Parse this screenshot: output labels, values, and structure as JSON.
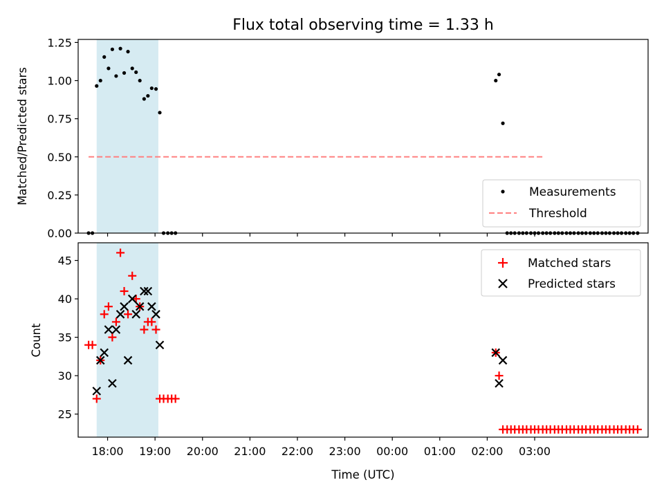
{
  "chart_data": [
    {
      "type": "scatter",
      "title": "Flux total observing time = 1.33 h",
      "xlabel": "",
      "ylabel": "Matched/Predicted stars",
      "ylim": [
        0,
        1.27
      ],
      "yticks": [
        "0.00",
        "0.25",
        "0.50",
        "0.75",
        "1.00",
        "1.25"
      ],
      "xticks_hours": [
        18,
        19,
        20,
        21,
        22,
        23,
        24,
        25,
        26,
        27
      ],
      "shaded_span_hours": [
        17.77,
        19.07
      ],
      "shaded_color": "#add8e6",
      "legend_position": "lower right",
      "legend": [
        "Measurements",
        "Threshold"
      ],
      "threshold": {
        "name": "Threshold",
        "value": 0.5,
        "x_hours": [
          17.6,
          27.2
        ],
        "color": "#ff8080",
        "style": "dashed"
      },
      "series": [
        {
          "name": "Measurements",
          "color": "#000000",
          "marker": "dot",
          "points": [
            [
              17.6,
              0
            ],
            [
              17.68,
              0
            ],
            [
              17.77,
              0.965
            ],
            [
              17.85,
              1.0
            ],
            [
              17.93,
              1.155
            ],
            [
              18.02,
              1.08
            ],
            [
              18.1,
              1.205
            ],
            [
              18.18,
              1.03
            ],
            [
              18.27,
              1.21
            ],
            [
              18.35,
              1.05
            ],
            [
              18.43,
              1.19
            ],
            [
              18.52,
              1.08
            ],
            [
              18.6,
              1.055
            ],
            [
              18.68,
              1.0
            ],
            [
              18.77,
              0.88
            ],
            [
              18.85,
              0.9
            ],
            [
              18.93,
              0.95
            ],
            [
              19.02,
              0.945
            ],
            [
              19.1,
              0.79
            ],
            [
              19.18,
              0
            ],
            [
              19.27,
              0
            ],
            [
              19.35,
              0
            ],
            [
              19.43,
              0
            ],
            [
              26.18,
              1.0
            ],
            [
              26.25,
              1.04
            ],
            [
              26.33,
              0.72
            ],
            [
              26.42,
              0
            ],
            [
              26.5,
              0
            ],
            [
              26.58,
              0
            ],
            [
              26.67,
              0
            ],
            [
              26.75,
              0
            ],
            [
              26.83,
              0
            ],
            [
              26.92,
              0
            ],
            [
              27.0,
              0
            ],
            [
              27.08,
              0
            ],
            [
              27.17,
              0
            ],
            [
              27.25,
              0
            ],
            [
              27.33,
              0
            ],
            [
              27.42,
              0
            ],
            [
              27.5,
              0
            ],
            [
              27.58,
              0
            ],
            [
              27.67,
              0
            ],
            [
              27.75,
              0
            ],
            [
              27.83,
              0
            ],
            [
              27.92,
              0
            ],
            [
              28.0,
              0
            ],
            [
              28.08,
              0
            ],
            [
              28.17,
              0
            ],
            [
              28.25,
              0
            ],
            [
              28.33,
              0
            ],
            [
              28.42,
              0
            ],
            [
              28.5,
              0
            ],
            [
              28.58,
              0
            ],
            [
              28.67,
              0
            ],
            [
              28.75,
              0
            ],
            [
              28.83,
              0
            ],
            [
              28.92,
              0
            ],
            [
              29.0,
              0
            ],
            [
              29.08,
              0
            ],
            [
              29.17,
              0
            ]
          ]
        }
      ]
    },
    {
      "type": "scatter",
      "title": "",
      "xlabel": "Time (UTC)",
      "ylabel": "Count",
      "ylim": [
        22,
        47.3
      ],
      "yticks": [
        "25",
        "30",
        "35",
        "40",
        "45"
      ],
      "xtick_labels": [
        "18:00",
        "19:00",
        "20:00",
        "21:00",
        "22:00",
        "23:00",
        "00:00",
        "01:00",
        "02:00",
        "03:00"
      ],
      "xticks_hours": [
        18,
        19,
        20,
        21,
        22,
        23,
        24,
        25,
        26,
        27
      ],
      "shaded_span_hours": [
        17.77,
        19.07
      ],
      "legend_position": "upper right",
      "legend": [
        "Matched stars",
        "Predicted stars"
      ],
      "series": [
        {
          "name": "Matched stars",
          "color": "#ff0000",
          "marker": "plus",
          "points": [
            [
              17.6,
              34
            ],
            [
              17.68,
              34
            ],
            [
              17.77,
              27
            ],
            [
              17.85,
              32
            ],
            [
              17.93,
              38
            ],
            [
              18.02,
              39
            ],
            [
              18.1,
              35
            ],
            [
              18.18,
              37
            ],
            [
              18.27,
              46
            ],
            [
              18.35,
              41
            ],
            [
              18.43,
              38
            ],
            [
              18.52,
              43
            ],
            [
              18.6,
              40
            ],
            [
              18.68,
              39
            ],
            [
              18.77,
              36
            ],
            [
              18.85,
              37
            ],
            [
              18.93,
              37
            ],
            [
              19.02,
              36
            ],
            [
              19.1,
              27
            ],
            [
              19.18,
              27
            ],
            [
              19.27,
              27
            ],
            [
              19.35,
              27
            ],
            [
              19.43,
              27
            ],
            [
              26.18,
              33
            ],
            [
              26.25,
              30
            ],
            [
              26.33,
              23
            ],
            [
              26.42,
              23
            ],
            [
              26.5,
              23
            ],
            [
              26.58,
              23
            ],
            [
              26.67,
              23
            ],
            [
              26.75,
              23
            ],
            [
              26.83,
              23
            ],
            [
              26.92,
              23
            ],
            [
              27.0,
              23
            ],
            [
              27.08,
              23
            ],
            [
              27.17,
              23
            ],
            [
              27.25,
              23
            ],
            [
              27.33,
              23
            ],
            [
              27.42,
              23
            ],
            [
              27.5,
              23
            ],
            [
              27.58,
              23
            ],
            [
              27.67,
              23
            ],
            [
              27.75,
              23
            ],
            [
              27.83,
              23
            ],
            [
              27.92,
              23
            ],
            [
              28.0,
              23
            ],
            [
              28.08,
              23
            ],
            [
              28.17,
              23
            ],
            [
              28.25,
              23
            ],
            [
              28.33,
              23
            ],
            [
              28.42,
              23
            ],
            [
              28.5,
              23
            ],
            [
              28.58,
              23
            ],
            [
              28.67,
              23
            ],
            [
              28.75,
              23
            ],
            [
              28.83,
              23
            ],
            [
              28.92,
              23
            ],
            [
              29.0,
              23
            ],
            [
              29.08,
              23
            ],
            [
              29.17,
              23
            ]
          ]
        },
        {
          "name": "Predicted stars",
          "color": "#000000",
          "marker": "x",
          "points": [
            [
              17.77,
              28
            ],
            [
              17.85,
              32
            ],
            [
              17.93,
              33
            ],
            [
              18.02,
              36
            ],
            [
              18.1,
              29
            ],
            [
              18.18,
              36
            ],
            [
              18.27,
              38
            ],
            [
              18.35,
              39
            ],
            [
              18.43,
              32
            ],
            [
              18.52,
              40
            ],
            [
              18.6,
              38
            ],
            [
              18.68,
              39
            ],
            [
              18.77,
              41
            ],
            [
              18.85,
              41
            ],
            [
              18.93,
              39
            ],
            [
              19.02,
              38
            ],
            [
              19.1,
              34
            ],
            [
              26.18,
              33
            ],
            [
              26.25,
              29
            ],
            [
              26.33,
              32
            ]
          ]
        }
      ]
    }
  ]
}
